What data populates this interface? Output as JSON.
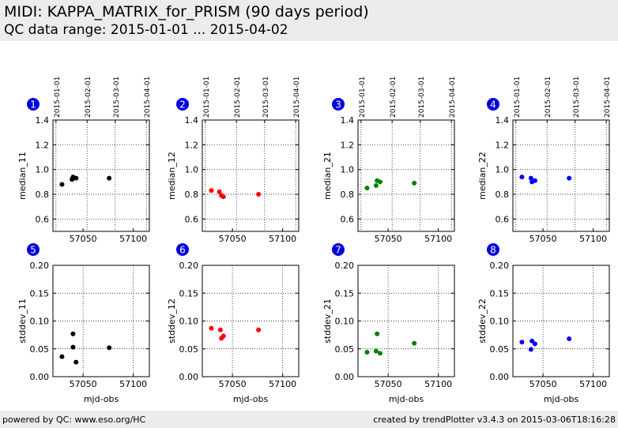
{
  "header": {
    "title": "MIDI: KAPPA_MATRIX_for_PRISM (90 days period)",
    "subtitle": "QC data range: 2015-01-01 ... 2015-04-02"
  },
  "footer": {
    "left": "powered by QC: www.eso.org/HC",
    "right": "created by trendPlotter v3.4.3 on 2015-03-06T18:16:28"
  },
  "chart_data": [
    {
      "type": "scatter",
      "panel": "1",
      "ylabel": "median_11",
      "color": "#000000",
      "xlim": [
        57020,
        57116
      ],
      "ylim": [
        0.5,
        1.4
      ],
      "yticks": [
        0.6,
        0.8,
        1.0,
        1.2,
        1.4
      ],
      "ytick_labels": [
        "0.6",
        "0.8",
        "1.0",
        "1.2",
        "1.4"
      ],
      "xticks": [
        57050,
        57100
      ],
      "xtick_labels": [
        "57050",
        "57100"
      ],
      "top_ticks": [
        57023,
        57054,
        57082,
        57113
      ],
      "top_tick_labels": [
        "2015-01-01",
        "2015-02-01",
        "2015-03-01",
        "2015-04-01"
      ],
      "x": [
        57029,
        57039,
        57040,
        57043,
        57076
      ],
      "y": [
        0.88,
        0.92,
        0.94,
        0.93,
        0.93
      ]
    },
    {
      "type": "scatter",
      "panel": "2",
      "ylabel": "median_12",
      "color": "#ff0000",
      "xlim": [
        57020,
        57116
      ],
      "ylim": [
        0.5,
        1.4
      ],
      "yticks": [
        0.6,
        0.8,
        1.0,
        1.2,
        1.4
      ],
      "ytick_labels": [
        "0.6",
        "0.8",
        "1.0",
        "1.2",
        "1.4"
      ],
      "xticks": [
        57050,
        57100
      ],
      "xtick_labels": [
        "57050",
        "57100"
      ],
      "top_ticks": [
        57023,
        57054,
        57082,
        57113
      ],
      "top_tick_labels": [
        "2015-01-01",
        "2015-02-01",
        "2015-03-01",
        "2015-04-01"
      ],
      "x": [
        57029,
        57037,
        57039,
        57041,
        57076
      ],
      "y": [
        0.83,
        0.82,
        0.79,
        0.78,
        0.8
      ]
    },
    {
      "type": "scatter",
      "panel": "3",
      "ylabel": "median_21",
      "color": "#008000",
      "xlim": [
        57020,
        57116
      ],
      "ylim": [
        0.5,
        1.4
      ],
      "yticks": [
        0.6,
        0.8,
        1.0,
        1.2,
        1.4
      ],
      "ytick_labels": [
        "0.6",
        "0.8",
        "1.0",
        "1.2",
        "1.4"
      ],
      "xticks": [
        57050,
        57100
      ],
      "xtick_labels": [
        "57050",
        "57100"
      ],
      "top_ticks": [
        57023,
        57054,
        57082,
        57113
      ],
      "top_tick_labels": [
        "2015-01-01",
        "2015-02-01",
        "2015-03-01",
        "2015-04-01"
      ],
      "x": [
        57029,
        57038,
        57039,
        57042,
        57076
      ],
      "y": [
        0.85,
        0.87,
        0.91,
        0.9,
        0.89
      ]
    },
    {
      "type": "scatter",
      "panel": "4",
      "ylabel": "median_22",
      "color": "#0000ff",
      "xlim": [
        57020,
        57116
      ],
      "ylim": [
        0.5,
        1.4
      ],
      "yticks": [
        0.6,
        0.8,
        1.0,
        1.2,
        1.4
      ],
      "ytick_labels": [
        "0.6",
        "0.8",
        "1.0",
        "1.2",
        "1.4"
      ],
      "xticks": [
        57050,
        57100
      ],
      "xtick_labels": [
        "57050",
        "57100"
      ],
      "top_ticks": [
        57023,
        57054,
        57082,
        57113
      ],
      "top_tick_labels": [
        "2015-01-01",
        "2015-02-01",
        "2015-03-01",
        "2015-04-01"
      ],
      "x": [
        57029,
        57038,
        57039,
        57042,
        57076
      ],
      "y": [
        0.94,
        0.93,
        0.9,
        0.91,
        0.93
      ]
    },
    {
      "type": "scatter",
      "panel": "5",
      "ylabel": "stddev_11",
      "xlabel": "mjd-obs",
      "color": "#000000",
      "xlim": [
        57020,
        57116
      ],
      "ylim": [
        0,
        0.2
      ],
      "yticks": [
        0,
        0.05,
        0.1,
        0.15,
        0.2
      ],
      "ytick_labels": [
        "0.00",
        "0.05",
        "0.10",
        "0.15",
        "0.20"
      ],
      "xticks": [
        57050,
        57100
      ],
      "xtick_labels": [
        "57050",
        "57100"
      ],
      "x": [
        57029,
        57040,
        57040,
        57043,
        57076
      ],
      "y": [
        0.036,
        0.077,
        0.053,
        0.026,
        0.052
      ]
    },
    {
      "type": "scatter",
      "panel": "6",
      "ylabel": "stddev_12",
      "xlabel": "mjd-obs",
      "color": "#ff0000",
      "xlim": [
        57020,
        57116
      ],
      "ylim": [
        0,
        0.2
      ],
      "yticks": [
        0,
        0.05,
        0.1,
        0.15,
        0.2
      ],
      "ytick_labels": [
        "0.00",
        "0.05",
        "0.10",
        "0.15",
        "0.20"
      ],
      "xticks": [
        57050,
        57100
      ],
      "xtick_labels": [
        "57050",
        "57100"
      ],
      "x": [
        57029,
        57038,
        57039,
        57041,
        57076
      ],
      "y": [
        0.087,
        0.084,
        0.069,
        0.073,
        0.084
      ]
    },
    {
      "type": "scatter",
      "panel": "7",
      "ylabel": "stddev_21",
      "xlabel": "mjd-obs",
      "color": "#008000",
      "xlim": [
        57020,
        57116
      ],
      "ylim": [
        0,
        0.2
      ],
      "yticks": [
        0,
        0.05,
        0.1,
        0.15,
        0.2
      ],
      "ytick_labels": [
        "0.00",
        "0.05",
        "0.10",
        "0.15",
        "0.20"
      ],
      "xticks": [
        57050,
        57100
      ],
      "xtick_labels": [
        "57050",
        "57100"
      ],
      "x": [
        57029,
        57038,
        57039,
        57042,
        57076
      ],
      "y": [
        0.044,
        0.046,
        0.077,
        0.042,
        0.06
      ]
    },
    {
      "type": "scatter",
      "panel": "8",
      "ylabel": "stddev_22",
      "xlabel": "mjd-obs",
      "color": "#0000ff",
      "xlim": [
        57020,
        57116
      ],
      "ylim": [
        0,
        0.2
      ],
      "yticks": [
        0,
        0.05,
        0.1,
        0.15,
        0.2
      ],
      "ytick_labels": [
        "0.00",
        "0.05",
        "0.10",
        "0.15",
        "0.20"
      ],
      "xticks": [
        57050,
        57100
      ],
      "xtick_labels": [
        "57050",
        "57100"
      ],
      "x": [
        57029,
        57038,
        57039,
        57042,
        57076
      ],
      "y": [
        0.062,
        0.049,
        0.064,
        0.059,
        0.068
      ]
    }
  ]
}
